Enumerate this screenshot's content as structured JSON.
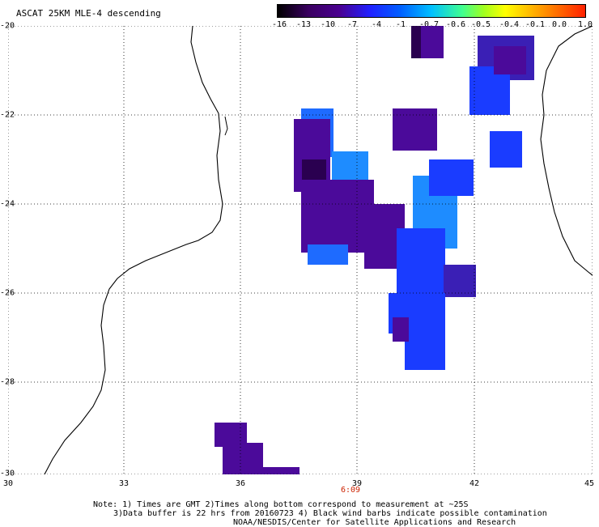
{
  "title": "ASCAT 25KM MLE-4 descending",
  "colorbar": {
    "labels": [
      "-16",
      "-13",
      "-10",
      "-7",
      "-4",
      "-1",
      "-0.7",
      "-0.6",
      "-0.5",
      "-0.4",
      "-0.1",
      "0.0",
      "1.0"
    ]
  },
  "axes": {
    "lat_labels": [
      "-20",
      "-22",
      "-24",
      "-26",
      "-28",
      "-30"
    ],
    "lon_labels": [
      "30",
      "33",
      "36",
      "39",
      "42",
      "45"
    ]
  },
  "time_label": "6:09",
  "notes": {
    "line1": "Note: 1) Times are GMT 2)Times along bottom correspond to measurement at ~25S",
    "line2": "3)Data buffer is 22 hrs from 20160723 4) Black wind barbs indicate possible contamination",
    "line3": "NOAA/NESDIS/Center for Satellite Applications and Research"
  },
  "colors": {
    "deep_purple": "#2a0050",
    "purple": "#4b0a9a",
    "indigo": "#3a1fb5",
    "blue": "#1a3cff",
    "light_blue": "#1e8cff",
    "coastline": "#000000"
  }
}
